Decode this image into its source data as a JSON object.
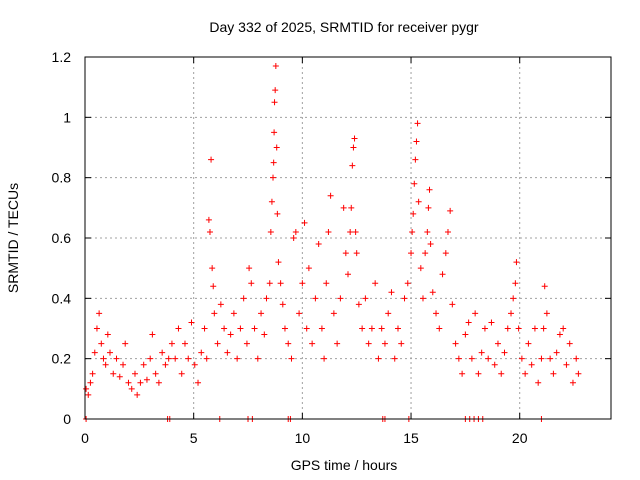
{
  "chart_data": {
    "type": "scatter",
    "title": "Day 332 of 2025, SRMTID for receiver pygr",
    "xlabel": "GPS time / hours",
    "ylabel": "SRMTID / TECUs",
    "xlim": [
      0,
      24.2
    ],
    "ylim": [
      0,
      1.2
    ],
    "x_ticks": [
      0,
      5,
      10,
      15,
      20
    ],
    "x_tick_labels": [
      "0",
      "5",
      "10",
      "15",
      "20"
    ],
    "y_ticks": [
      0,
      0.2,
      0.4,
      0.6,
      0.8,
      1,
      1.2
    ],
    "y_tick_labels": [
      "0",
      "0.2",
      "0.4",
      "0.6",
      "0.8",
      "1",
      "1.2"
    ],
    "grid": true,
    "marker": "+",
    "marker_color": "#ff0000",
    "series": [
      {
        "name": "SRMTID",
        "points": [
          [
            0.05,
            0.1
          ],
          [
            0.15,
            0.08
          ],
          [
            0.25,
            0.12
          ],
          [
            0.35,
            0.15
          ],
          [
            0.45,
            0.22
          ],
          [
            0.55,
            0.3
          ],
          [
            0.65,
            0.35
          ],
          [
            0.75,
            0.25
          ],
          [
            0.85,
            0.2
          ],
          [
            0.95,
            0.18
          ],
          [
            1.05,
            0.28
          ],
          [
            1.15,
            0.22
          ],
          [
            1.3,
            0.15
          ],
          [
            1.45,
            0.2
          ],
          [
            1.6,
            0.14
          ],
          [
            1.75,
            0.18
          ],
          [
            1.85,
            0.25
          ],
          [
            2.0,
            0.12
          ],
          [
            2.15,
            0.1
          ],
          [
            2.3,
            0.15
          ],
          [
            2.4,
            0.08
          ],
          [
            2.55,
            0.12
          ],
          [
            2.7,
            0.18
          ],
          [
            2.85,
            0.13
          ],
          [
            3.0,
            0.2
          ],
          [
            3.1,
            0.28
          ],
          [
            3.25,
            0.15
          ],
          [
            3.4,
            0.12
          ],
          [
            3.55,
            0.22
          ],
          [
            3.7,
            0.18
          ],
          [
            3.85,
            0.2
          ],
          [
            4.0,
            0.25
          ],
          [
            4.15,
            0.2
          ],
          [
            4.3,
            0.3
          ],
          [
            4.45,
            0.15
          ],
          [
            4.6,
            0.25
          ],
          [
            4.75,
            0.2
          ],
          [
            4.9,
            0.32
          ],
          [
            5.05,
            0.18
          ],
          [
            5.2,
            0.12
          ],
          [
            5.35,
            0.22
          ],
          [
            5.5,
            0.3
          ],
          [
            5.6,
            0.2
          ],
          [
            5.7,
            0.66
          ],
          [
            5.75,
            0.62
          ],
          [
            5.8,
            0.86
          ],
          [
            5.85,
            0.5
          ],
          [
            5.9,
            0.44
          ],
          [
            5.95,
            0.35
          ],
          [
            6.1,
            0.25
          ],
          [
            6.25,
            0.38
          ],
          [
            6.4,
            0.3
          ],
          [
            6.55,
            0.22
          ],
          [
            6.7,
            0.28
          ],
          [
            6.85,
            0.35
          ],
          [
            7.0,
            0.2
          ],
          [
            7.15,
            0.3
          ],
          [
            7.3,
            0.4
          ],
          [
            7.45,
            0.25
          ],
          [
            7.55,
            0.5
          ],
          [
            7.65,
            0.45
          ],
          [
            7.8,
            0.3
          ],
          [
            7.95,
            0.2
          ],
          [
            8.1,
            0.35
          ],
          [
            8.25,
            0.28
          ],
          [
            8.35,
            0.4
          ],
          [
            8.5,
            0.45
          ],
          [
            8.55,
            0.62
          ],
          [
            8.6,
            0.72
          ],
          [
            8.65,
            0.8
          ],
          [
            8.68,
            0.85
          ],
          [
            8.7,
            0.95
          ],
          [
            8.72,
            1.05
          ],
          [
            8.75,
            1.09
          ],
          [
            8.78,
            1.17
          ],
          [
            8.82,
            0.9
          ],
          [
            8.85,
            0.68
          ],
          [
            8.9,
            0.52
          ],
          [
            9.0,
            0.45
          ],
          [
            9.1,
            0.38
          ],
          [
            9.2,
            0.3
          ],
          [
            9.35,
            0.25
          ],
          [
            9.5,
            0.2
          ],
          [
            9.6,
            0.6
          ],
          [
            9.7,
            0.62
          ],
          [
            9.85,
            0.35
          ],
          [
            10.0,
            0.45
          ],
          [
            10.1,
            0.65
          ],
          [
            10.2,
            0.3
          ],
          [
            10.3,
            0.5
          ],
          [
            10.45,
            0.25
          ],
          [
            10.6,
            0.4
          ],
          [
            10.75,
            0.58
          ],
          [
            10.9,
            0.3
          ],
          [
            11.0,
            0.2
          ],
          [
            11.1,
            0.45
          ],
          [
            11.2,
            0.62
          ],
          [
            11.3,
            0.74
          ],
          [
            11.45,
            0.35
          ],
          [
            11.6,
            0.25
          ],
          [
            11.75,
            0.4
          ],
          [
            11.9,
            0.7
          ],
          [
            12.0,
            0.55
          ],
          [
            12.1,
            0.48
          ],
          [
            12.2,
            0.62
          ],
          [
            12.25,
            0.7
          ],
          [
            12.3,
            0.84
          ],
          [
            12.35,
            0.9
          ],
          [
            12.4,
            0.93
          ],
          [
            12.45,
            0.62
          ],
          [
            12.5,
            0.55
          ],
          [
            12.6,
            0.38
          ],
          [
            12.75,
            0.3
          ],
          [
            12.9,
            0.4
          ],
          [
            13.05,
            0.25
          ],
          [
            13.2,
            0.3
          ],
          [
            13.35,
            0.45
          ],
          [
            13.5,
            0.2
          ],
          [
            13.65,
            0.3
          ],
          [
            13.8,
            0.25
          ],
          [
            13.95,
            0.35
          ],
          [
            14.1,
            0.42
          ],
          [
            14.25,
            0.2
          ],
          [
            14.4,
            0.3
          ],
          [
            14.55,
            0.25
          ],
          [
            14.7,
            0.4
          ],
          [
            14.85,
            0.45
          ],
          [
            15.0,
            0.55
          ],
          [
            15.05,
            0.62
          ],
          [
            15.1,
            0.68
          ],
          [
            15.15,
            0.78
          ],
          [
            15.2,
            0.86
          ],
          [
            15.25,
            0.92
          ],
          [
            15.3,
            0.98
          ],
          [
            15.35,
            0.72
          ],
          [
            15.45,
            0.5
          ],
          [
            15.55,
            0.4
          ],
          [
            15.65,
            0.55
          ],
          [
            15.75,
            0.62
          ],
          [
            15.8,
            0.7
          ],
          [
            15.85,
            0.76
          ],
          [
            15.9,
            0.58
          ],
          [
            16.0,
            0.42
          ],
          [
            16.15,
            0.35
          ],
          [
            16.3,
            0.3
          ],
          [
            16.45,
            0.48
          ],
          [
            16.6,
            0.55
          ],
          [
            16.7,
            0.62
          ],
          [
            16.8,
            0.69
          ],
          [
            16.9,
            0.38
          ],
          [
            17.05,
            0.25
          ],
          [
            17.2,
            0.2
          ],
          [
            17.35,
            0.15
          ],
          [
            17.5,
            0.28
          ],
          [
            17.65,
            0.32
          ],
          [
            17.8,
            0.2
          ],
          [
            17.95,
            0.35
          ],
          [
            18.1,
            0.15
          ],
          [
            18.25,
            0.22
          ],
          [
            18.4,
            0.3
          ],
          [
            18.55,
            0.2
          ],
          [
            18.7,
            0.32
          ],
          [
            18.85,
            0.18
          ],
          [
            19.0,
            0.25
          ],
          [
            19.15,
            0.15
          ],
          [
            19.3,
            0.22
          ],
          [
            19.45,
            0.3
          ],
          [
            19.6,
            0.35
          ],
          [
            19.7,
            0.4
          ],
          [
            19.8,
            0.45
          ],
          [
            19.85,
            0.52
          ],
          [
            19.95,
            0.3
          ],
          [
            20.1,
            0.2
          ],
          [
            20.25,
            0.15
          ],
          [
            20.4,
            0.25
          ],
          [
            20.55,
            0.18
          ],
          [
            20.7,
            0.3
          ],
          [
            20.85,
            0.12
          ],
          [
            21.0,
            0.2
          ],
          [
            21.1,
            0.3
          ],
          [
            21.15,
            0.44
          ],
          [
            21.25,
            0.35
          ],
          [
            21.4,
            0.2
          ],
          [
            21.55,
            0.15
          ],
          [
            21.7,
            0.22
          ],
          [
            21.85,
            0.28
          ],
          [
            22.0,
            0.3
          ],
          [
            22.15,
            0.18
          ],
          [
            22.3,
            0.25
          ],
          [
            22.45,
            0.12
          ],
          [
            22.6,
            0.2
          ],
          [
            22.7,
            0.15
          ]
        ]
      }
    ],
    "zero_points_x": [
      0.05,
      3.8,
      3.9,
      6.2,
      7.5,
      7.7,
      9.35,
      9.45,
      13.7,
      13.8,
      14.9,
      17.5,
      17.7,
      17.9,
      18.1,
      18.3,
      21.0
    ]
  }
}
